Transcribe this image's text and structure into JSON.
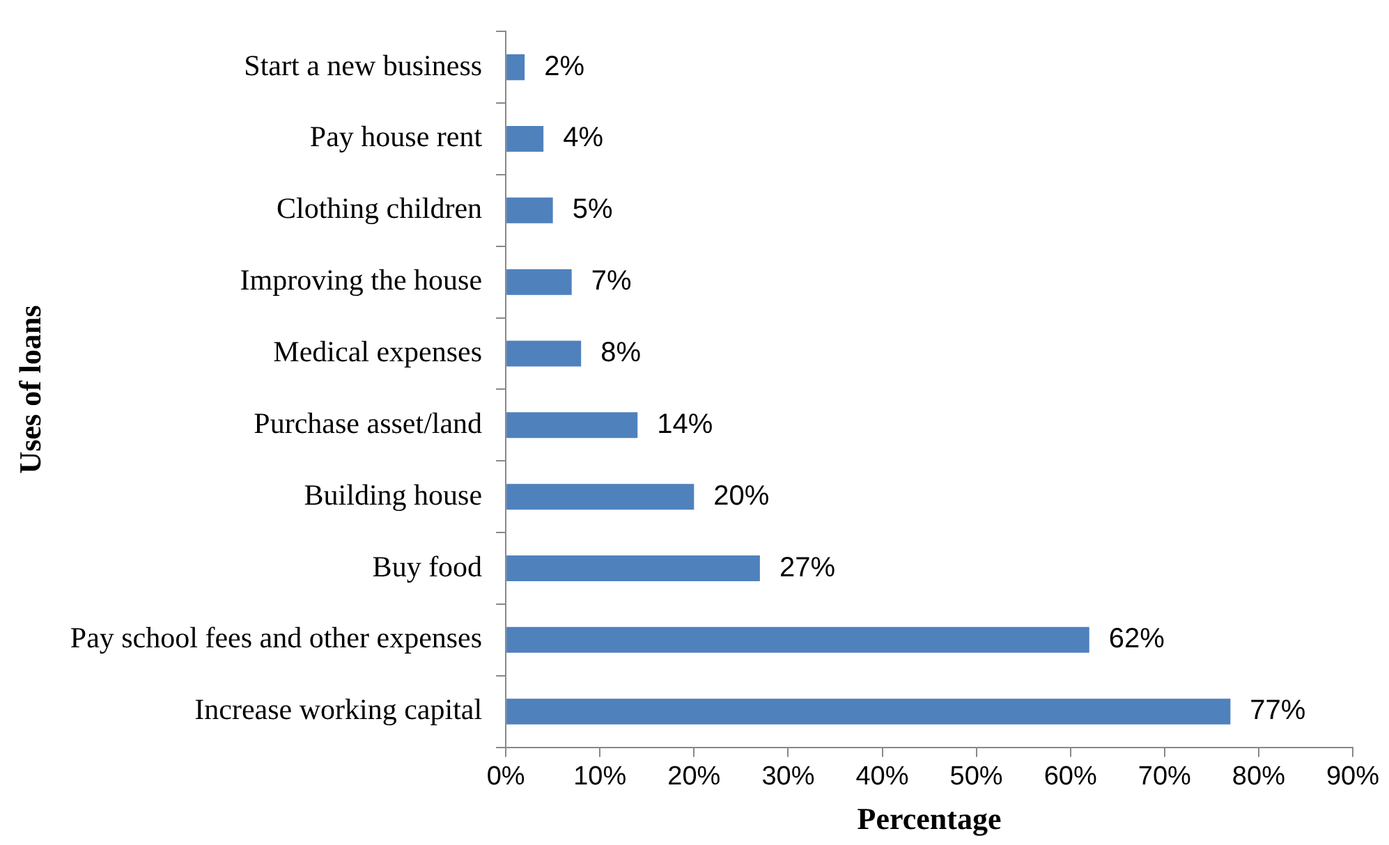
{
  "chart_data": {
    "type": "bar",
    "orientation": "horizontal",
    "xlabel": "Percentage",
    "ylabel": "Uses of loans",
    "categories": [
      "Start a new business",
      "Pay house rent",
      "Clothing children",
      "Improving the house",
      "Medical expenses",
      "Purchase asset/land",
      "Building house",
      "Buy food",
      "Pay school fees and other expenses",
      "Increase working capital"
    ],
    "values": [
      2,
      4,
      5,
      7,
      8,
      14,
      20,
      27,
      62,
      77
    ],
    "value_labels": [
      "2%",
      "4%",
      "5%",
      "7%",
      "8%",
      "14%",
      "20%",
      "27%",
      "62%",
      "77%"
    ],
    "color": "#4f81bd",
    "xlim": [
      0,
      90
    ],
    "xticks": [
      {
        "value": 0,
        "label": "0%"
      },
      {
        "value": 10,
        "label": "10%"
      },
      {
        "value": 20,
        "label": "20%"
      },
      {
        "value": 30,
        "label": "30%"
      },
      {
        "value": 40,
        "label": "40%"
      },
      {
        "value": 50,
        "label": "50%"
      },
      {
        "value": 60,
        "label": "60%"
      },
      {
        "value": 70,
        "label": "70%"
      },
      {
        "value": 80,
        "label": "80%"
      },
      {
        "value": 90,
        "label": "90%"
      }
    ],
    "legend": false
  }
}
